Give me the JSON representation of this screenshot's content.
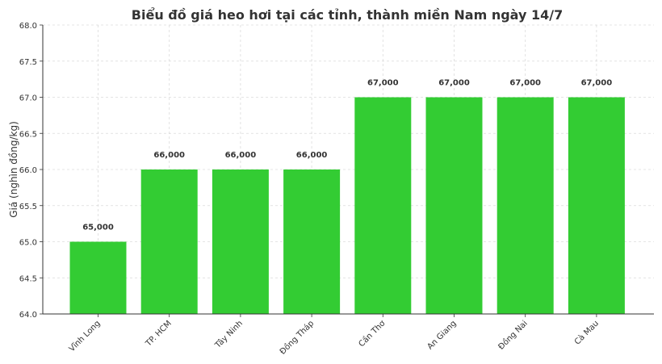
{
  "chart_data": {
    "type": "bar",
    "title": "Biểu đồ giá heo hơi tại các tỉnh, thành miền Nam ngày 14/7",
    "xlabel": "",
    "ylabel": "Giá (nghìn đồng/kg)",
    "categories": [
      "Vĩnh Long",
      "TP. HCM",
      "Tây Ninh",
      "Đồng Tháp",
      "Cần Thơ",
      "An Giang",
      "Đồng Nai",
      "Cà Mau"
    ],
    "values": [
      65.0,
      66.0,
      66.0,
      66.0,
      67.0,
      67.0,
      67.0,
      67.0
    ],
    "data_labels": [
      "65,000",
      "66,000",
      "66,000",
      "66,000",
      "67,000",
      "67,000",
      "67,000",
      "67,000"
    ],
    "ylim": [
      64.0,
      68.0
    ],
    "yticks": [
      "64.0",
      "64.5",
      "65.0",
      "65.5",
      "66.0",
      "66.5",
      "67.0",
      "67.5",
      "68.0"
    ],
    "grid": true,
    "bar_color": "#33cc33",
    "grid_color": "#cccccc",
    "text_color": "#333333"
  }
}
